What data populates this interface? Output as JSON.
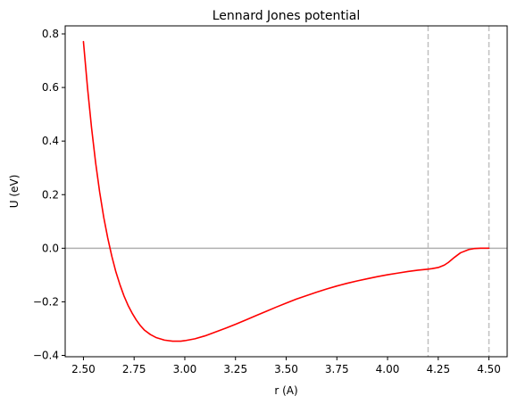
{
  "chart_data": {
    "type": "line",
    "title": "Lennard Jones potential",
    "xlabel": "r (A)",
    "ylabel": "U (eV)",
    "xlim": [
      2.41,
      4.59
    ],
    "ylim": [
      -0.405,
      0.83
    ],
    "xticks": [
      2.5,
      2.75,
      3.0,
      3.25,
      3.5,
      3.75,
      4.0,
      4.25,
      4.5
    ],
    "xtick_labels": [
      "2.50",
      "2.75",
      "3.00",
      "3.25",
      "3.50",
      "3.75",
      "4.00",
      "4.25",
      "4.50"
    ],
    "yticks": [
      -0.4,
      -0.2,
      0.0,
      0.2,
      0.4,
      0.6,
      0.8
    ],
    "ytick_labels": [
      "−0.4",
      "−0.2",
      "0.0",
      "0.2",
      "0.4",
      "0.6",
      "0.8"
    ],
    "grid": false,
    "series": [
      {
        "color": "#ff0000",
        "x": [
          2.5,
          2.52,
          2.54,
          2.56,
          2.58,
          2.6,
          2.62,
          2.64,
          2.66,
          2.68,
          2.7,
          2.72,
          2.74,
          2.76,
          2.78,
          2.8,
          2.83,
          2.86,
          2.9,
          2.94,
          2.98,
          3.0,
          3.05,
          3.1,
          3.15,
          3.2,
          3.25,
          3.3,
          3.35,
          3.4,
          3.45,
          3.5,
          3.55,
          3.6,
          3.65,
          3.7,
          3.75,
          3.8,
          3.85,
          3.9,
          3.95,
          4.0,
          4.05,
          4.1,
          4.15,
          4.2,
          4.22,
          4.25,
          4.28,
          4.3,
          4.33,
          4.36,
          4.4,
          4.43,
          4.46,
          4.48,
          4.5
        ],
        "y": [
          0.771,
          0.6,
          0.45,
          0.32,
          0.21,
          0.116,
          0.038,
          -0.03,
          -0.088,
          -0.136,
          -0.178,
          -0.213,
          -0.242,
          -0.267,
          -0.288,
          -0.305,
          -0.322,
          -0.334,
          -0.343,
          -0.347,
          -0.347,
          -0.345,
          -0.338,
          -0.327,
          -0.313,
          -0.299,
          -0.284,
          -0.268,
          -0.252,
          -0.236,
          -0.22,
          -0.205,
          -0.19,
          -0.177,
          -0.164,
          -0.152,
          -0.141,
          -0.131,
          -0.122,
          -0.114,
          -0.106,
          -0.099,
          -0.093,
          -0.087,
          -0.082,
          -0.078,
          -0.076,
          -0.072,
          -0.063,
          -0.053,
          -0.034,
          -0.017,
          -0.005,
          -0.001,
          0.0,
          0.0,
          0.0
        ]
      }
    ],
    "reference_lines": [
      {
        "orientation": "horizontal",
        "value": 0.0,
        "color": "#b0b0b0",
        "style": "solid"
      },
      {
        "orientation": "vertical",
        "value": 4.2,
        "color": "#c0c0c0",
        "style": "dashed"
      },
      {
        "orientation": "vertical",
        "value": 4.5,
        "color": "#c0c0c0",
        "style": "dashed"
      }
    ]
  }
}
